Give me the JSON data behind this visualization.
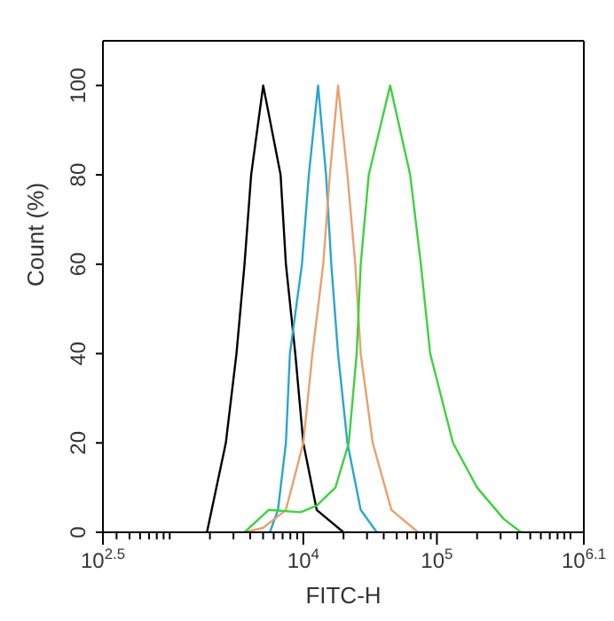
{
  "chart_data": {
    "type": "line",
    "xlabel": "FITC-H",
    "ylabel": "Count (%)",
    "log": "x",
    "xlim": [
      316.2,
      1258925
    ],
    "xticks": [
      {
        "value": 316.2,
        "label": "10$^{2.5}$"
      },
      {
        "value": 400,
        "label": null
      },
      {
        "value": 500,
        "label": null
      },
      {
        "value": 600,
        "label": null
      },
      {
        "value": 700,
        "label": null
      },
      {
        "value": 800,
        "label": null
      },
      {
        "value": 900,
        "label": null
      },
      {
        "value": 1000,
        "label": null
      },
      {
        "value": 2000,
        "label": null
      },
      {
        "value": 3000,
        "label": null
      },
      {
        "value": 4000,
        "label": null
      },
      {
        "value": 5000,
        "label": null
      },
      {
        "value": 6000,
        "label": null
      },
      {
        "value": 7000,
        "label": null
      },
      {
        "value": 8000,
        "label": null
      },
      {
        "value": 9000,
        "label": null
      },
      {
        "value": 10000,
        "label": "10$^{4}$"
      },
      {
        "value": 20000,
        "label": null
      },
      {
        "value": 30000,
        "label": null
      },
      {
        "value": 40000,
        "label": null
      },
      {
        "value": 50000,
        "label": null
      },
      {
        "value": 60000,
        "label": null
      },
      {
        "value": 70000,
        "label": null
      },
      {
        "value": 80000,
        "label": null
      },
      {
        "value": 90000,
        "label": null
      },
      {
        "value": 100000,
        "label": "10$^{5}$"
      },
      {
        "value": 200000,
        "label": null
      },
      {
        "value": 300000,
        "label": null
      },
      {
        "value": 400000,
        "label": null
      },
      {
        "value": 500000,
        "label": null
      },
      {
        "value": 600000,
        "label": null
      },
      {
        "value": 700000,
        "label": null
      },
      {
        "value": 800000,
        "label": null
      },
      {
        "value": 900000,
        "label": null
      },
      {
        "value": 1000000,
        "label": null
      },
      {
        "value": 1258925,
        "label": "10$^{6.1}$"
      }
    ],
    "ylim": [
      0,
      110
    ],
    "yticks": [
      0,
      20,
      40,
      60,
      80,
      100
    ],
    "legend": false,
    "marker": "none",
    "line_style": "solid",
    "series": [
      {
        "color": "#000000",
        "x": [
          1900,
          2630,
          3160,
          3630,
          4070,
          5010,
          6760,
          7410,
          8710,
          10000,
          12600,
          20000
        ],
        "values": [
          0,
          20,
          40,
          60,
          80,
          100,
          80,
          60,
          40,
          20,
          5,
          0
        ]
      },
      {
        "color": "#2aa5d0",
        "x": [
          5620,
          6460,
          7410,
          7940,
          9770,
          11000,
          12900,
          14800,
          16200,
          18200,
          21400,
          26900,
          35500
        ],
        "values": [
          0,
          5,
          20,
          40,
          60,
          80,
          100,
          80,
          60,
          40,
          20,
          5,
          0
        ]
      },
      {
        "color": "#e8a070",
        "x": [
          3630,
          5010,
          7410,
          10000,
          11700,
          14100,
          15800,
          18200,
          21400,
          24500,
          26900,
          33100,
          45700,
          72400
        ],
        "values": [
          0,
          1,
          5,
          20,
          40,
          60,
          80,
          100,
          80,
          60,
          40,
          20,
          5,
          0
        ]
      },
      {
        "color": "#40d040",
        "x": [
          3630,
          5500,
          9550,
          12600,
          17400,
          21900,
          25100,
          26900,
          30900,
          44700,
          63100,
          75900,
          89100,
          132000,
          200000,
          316000,
          427000
        ],
        "values": [
          0,
          5,
          4.5,
          6,
          10,
          20,
          40,
          60,
          80,
          100,
          80,
          60,
          40,
          20,
          10,
          3,
          0
        ]
      }
    ]
  }
}
